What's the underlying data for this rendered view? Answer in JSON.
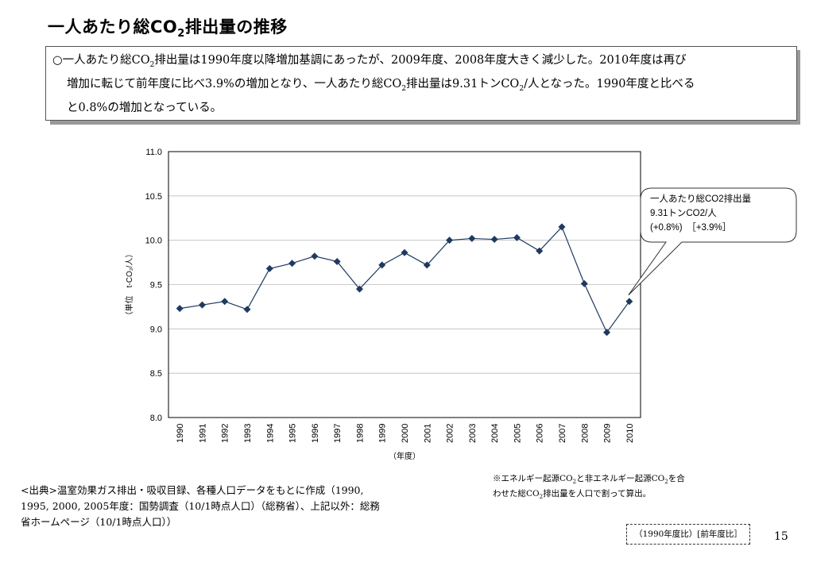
{
  "title": {
    "pre": "一人あたり総CO",
    "sub": "2",
    "post": "排出量の推移"
  },
  "summary": {
    "l1a": "○一人あたり総CO",
    "l1sub": "2",
    "l1b": "排出量は1990年度以降増加基調にあったが、2009年度、2008年度大きく減少した。2010年度は再び",
    "l2a": "増加に転じて前年度に比べ3.9%の増加となり、一人あたり総CO",
    "l2sub": "2",
    "l2b": "排出量は9.31トンCO",
    "l2sub2": "2",
    "l2c": "/人となった。1990年度と比べる",
    "l3": "と0.8%の増加となっている。"
  },
  "chart_data": {
    "type": "line",
    "x": [
      "1990",
      "1991",
      "1992",
      "1993",
      "1994",
      "1995",
      "1996",
      "1997",
      "1998",
      "1999",
      "2000",
      "2001",
      "2002",
      "2003",
      "2004",
      "2005",
      "2006",
      "2007",
      "2008",
      "2009",
      "2010"
    ],
    "series": [
      {
        "values": [
          9.23,
          9.27,
          9.31,
          9.22,
          9.68,
          9.74,
          9.82,
          9.76,
          9.45,
          9.72,
          9.86,
          9.72,
          10.0,
          10.02,
          10.01,
          10.03,
          9.88,
          10.15,
          9.51,
          8.96,
          9.31
        ]
      }
    ],
    "ylim": [
      8.0,
      11.0
    ],
    "yticks": [
      "11.0",
      "10.5",
      "10.0",
      "9.5",
      "9.0",
      "8.5",
      "8.0"
    ],
    "ylabel": "（単位　t-CO₂/人）",
    "xlabel": "（年度）",
    "grid": true,
    "color": "#1f3a5f",
    "callout": {
      "line1": "一人あたり総CO2排出量",
      "line2": "9.31トンCO2/人",
      "line3": "(+0.8%)　［+3.9%］"
    }
  },
  "source": {
    "line1": "<出典>温室効果ガス排出・吸収目録、各種人口データをもとに作成（1990,",
    "line2": "1995, 2000, 2005年度：国勢調査（10/1時点人口）（総務省）、上記以外：総務",
    "line3": "省ホームページ（10/1時点人口））"
  },
  "note": {
    "a": "※エネルギー起源CO",
    "s1": "2",
    "b": "と非エネルギー起源CO",
    "s2": "2",
    "c": "を合",
    "d": "わせた総CO",
    "s3": "2",
    "e": "排出量を人口で割って算出。"
  },
  "legend_box": "（1990年度比）[前年度比］",
  "page_number": "15"
}
